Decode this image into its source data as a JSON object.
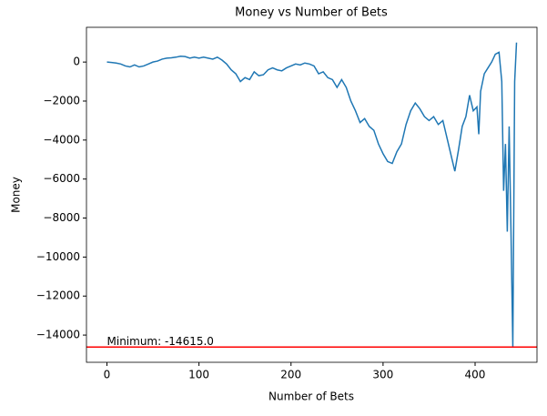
{
  "chart_data": {
    "type": "line",
    "title": "Money vs Number of Bets",
    "x_label": "Number of Bets",
    "y_label": "Money",
    "x": [
      0,
      5,
      10,
      15,
      20,
      25,
      30,
      35,
      40,
      45,
      50,
      55,
      60,
      65,
      70,
      75,
      80,
      85,
      90,
      95,
      100,
      105,
      110,
      115,
      120,
      125,
      130,
      135,
      140,
      145,
      150,
      155,
      160,
      165,
      170,
      175,
      180,
      185,
      190,
      195,
      200,
      205,
      210,
      215,
      220,
      225,
      230,
      235,
      240,
      245,
      250,
      255,
      260,
      265,
      270,
      275,
      280,
      285,
      290,
      295,
      300,
      305,
      310,
      315,
      320,
      325,
      330,
      335,
      340,
      345,
      350,
      355,
      360,
      365,
      370,
      375,
      378,
      382,
      386,
      390,
      394,
      398,
      402,
      404,
      406,
      410,
      414,
      418,
      422,
      426,
      429,
      431,
      433,
      435,
      437,
      439,
      441,
      443,
      445
    ],
    "series": [
      {
        "name": "Money",
        "color": "#1f77b4",
        "values": [
          0,
          -20,
          -50,
          -100,
          -200,
          -250,
          -150,
          -250,
          -200,
          -100,
          0,
          50,
          150,
          200,
          220,
          250,
          300,
          280,
          200,
          250,
          200,
          250,
          200,
          150,
          250,
          100,
          -100,
          -400,
          -600,
          -1000,
          -800,
          -900,
          -500,
          -700,
          -650,
          -400,
          -300,
          -400,
          -450,
          -300,
          -200,
          -100,
          -150,
          -50,
          -100,
          -200,
          -600,
          -500,
          -800,
          -900,
          -1300,
          -900,
          -1300,
          -2000,
          -2500,
          -3100,
          -2900,
          -3300,
          -3500,
          -4200,
          -4700,
          -5100,
          -5200,
          -4600,
          -4200,
          -3200,
          -2500,
          -2100,
          -2400,
          -2800,
          -3000,
          -2800,
          -3200,
          -3000,
          -4000,
          -5000,
          -5600,
          -4500,
          -3300,
          -2800,
          -1700,
          -2500,
          -2300,
          -3700,
          -1500,
          -600,
          -300,
          0,
          400,
          500,
          -1000,
          -6600,
          -4200,
          -8700,
          -3300,
          -8700,
          -14615,
          -1000,
          1000
        ]
      }
    ],
    "hline": {
      "value": -14615,
      "color": "#ff0000",
      "label": "Minimum: -14615.0"
    },
    "xlim": [
      -22.25,
      467.25
    ],
    "ylim": [
      -15396,
      1781
    ],
    "xticks": [
      0,
      100,
      200,
      300,
      400
    ],
    "yticks": [
      {
        "value": -14000,
        "label": "−14000"
      },
      {
        "value": -12000,
        "label": "−12000"
      },
      {
        "value": -10000,
        "label": "−10000"
      },
      {
        "value": -8000,
        "label": "−8000"
      },
      {
        "value": -6000,
        "label": "−6000"
      },
      {
        "value": -4000,
        "label": "−4000"
      },
      {
        "value": -2000,
        "label": "−2000"
      },
      0
    ]
  }
}
